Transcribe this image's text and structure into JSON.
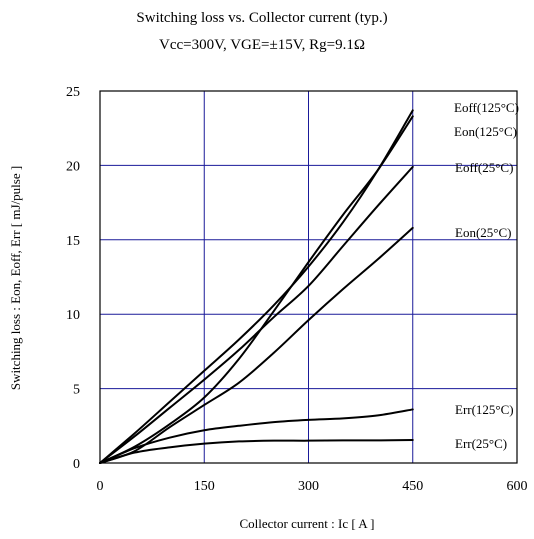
{
  "chart_data": {
    "type": "line",
    "title": "Switching loss  vs.  Collector current  (typ.)",
    "subtitle": "Vcc=300V, VGE=±15V, Rg=9.1Ω",
    "xlabel": "Collector current  :  Ic  [ A ]",
    "ylabel": "Switching loss  :  Eon, Eoff, Err  [ mJ/pulse ]",
    "xlim": [
      0,
      600
    ],
    "ylim": [
      0,
      25
    ],
    "xticks": [
      0,
      150,
      300,
      450,
      600
    ],
    "yticks": [
      0,
      5,
      10,
      15,
      20,
      25
    ],
    "grid": true,
    "colors": {
      "grid": "#1a1a99",
      "frame": "#000000",
      "curve": "#000000"
    },
    "series": [
      {
        "name": "Eoff(125°C)",
        "x": [
          0,
          50,
          100,
          150,
          200,
          250,
          300,
          350,
          400,
          450
        ],
        "y": [
          0,
          2.0,
          4.1,
          6.2,
          8.3,
          10.6,
          13.2,
          16.2,
          19.7,
          23.7
        ]
      },
      {
        "name": "Eon(125°C)",
        "x": [
          0,
          50,
          100,
          150,
          200,
          250,
          300,
          350,
          400,
          450
        ],
        "y": [
          0,
          1.1,
          2.6,
          4.4,
          7.0,
          10.2,
          13.5,
          16.7,
          19.7,
          23.3
        ]
      },
      {
        "name": "Eoff(25°C)",
        "x": [
          0,
          50,
          100,
          150,
          200,
          250,
          300,
          350,
          400,
          450
        ],
        "y": [
          0,
          1.8,
          3.7,
          5.6,
          7.6,
          9.8,
          11.9,
          14.6,
          17.3,
          19.9
        ]
      },
      {
        "name": "Eon(25°C)",
        "x": [
          0,
          50,
          100,
          150,
          200,
          250,
          300,
          350,
          400,
          450
        ],
        "y": [
          0,
          0.8,
          2.4,
          3.9,
          5.4,
          7.4,
          9.6,
          11.7,
          13.7,
          15.8
        ]
      },
      {
        "name": "Err(125°C)",
        "x": [
          0,
          50,
          100,
          150,
          200,
          250,
          300,
          350,
          400,
          450
        ],
        "y": [
          0,
          1.0,
          1.7,
          2.2,
          2.5,
          2.75,
          2.9,
          3.0,
          3.2,
          3.6
        ]
      },
      {
        "name": "Err(25°C)",
        "x": [
          0,
          50,
          100,
          150,
          200,
          250,
          300,
          350,
          400,
          450
        ],
        "y": [
          0,
          0.7,
          1.05,
          1.3,
          1.45,
          1.5,
          1.5,
          1.52,
          1.52,
          1.55
        ]
      }
    ]
  }
}
